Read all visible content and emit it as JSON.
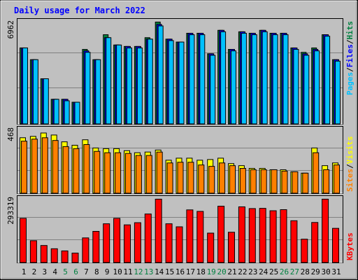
{
  "title": "Daily usage for March 2022",
  "colors": {
    "background": "#c0c0c0",
    "title": "#0000ff",
    "hits": "#008040",
    "files": "#0000ff",
    "pages": "#00c0ff",
    "visits": "#ffff00",
    "sites": "#ff8000",
    "kbytes": "#ff0000",
    "weekend_day": "#008040",
    "weekday": "#000000"
  },
  "chart_data": [
    {
      "type": "bar",
      "panel": "hits-files-pages",
      "categories": [
        "1",
        "2",
        "3",
        "4",
        "5",
        "6",
        "7",
        "8",
        "9",
        "10",
        "11",
        "12",
        "13",
        "14",
        "15",
        "16",
        "17",
        "18",
        "19",
        "20",
        "21",
        "22",
        "23",
        "24",
        "25",
        "26",
        "27",
        "28",
        "29",
        "30",
        "31"
      ],
      "weekend_days": [
        "5",
        "6",
        "12",
        "13",
        "19",
        "20",
        "26",
        "27"
      ],
      "ymax_label": "6962",
      "ylim": [
        0,
        6962
      ],
      "right_labels": [
        "Pages",
        "/",
        "Files",
        "/",
        "Hits"
      ],
      "series": [
        {
          "name": "Hits",
          "values": [
            5200,
            4400,
            3100,
            1700,
            1700,
            1500,
            5100,
            4400,
            6100,
            5400,
            5300,
            5300,
            5900,
            6962,
            5800,
            5600,
            6200,
            6200,
            4800,
            6400,
            5100,
            6300,
            6200,
            6400,
            6200,
            6200,
            5200,
            4900,
            5200,
            6100,
            4400
          ]
        },
        {
          "name": "Files",
          "values": [
            5200,
            4400,
            3100,
            1700,
            1700,
            1500,
            5000,
            4400,
            5900,
            5400,
            5300,
            5300,
            5800,
            6800,
            5800,
            5600,
            6200,
            6200,
            4800,
            6400,
            5100,
            6300,
            6200,
            6400,
            6200,
            6200,
            5200,
            4800,
            5100,
            6100,
            4400
          ]
        },
        {
          "name": "Pages",
          "values": [
            5200,
            4400,
            3100,
            1700,
            1600,
            1500,
            4900,
            4400,
            5900,
            5400,
            5200,
            5200,
            5800,
            6700,
            5700,
            5600,
            6100,
            6100,
            4700,
            6300,
            5000,
            6200,
            6100,
            6300,
            6100,
            6100,
            5100,
            4700,
            5000,
            6000,
            4300
          ]
        }
      ]
    },
    {
      "type": "bar",
      "panel": "visits-sites",
      "ymax_label": "468",
      "ylim": [
        0,
        468
      ],
      "right_labels": [
        "Sites",
        "/",
        "Visits"
      ],
      "series": [
        {
          "name": "Visits",
          "values": [
            410,
            420,
            445,
            430,
            380,
            355,
            395,
            335,
            330,
            330,
            315,
            300,
            305,
            320,
            245,
            260,
            260,
            245,
            250,
            260,
            220,
            205,
            185,
            185,
            175,
            175,
            160,
            150,
            335,
            205,
            225
          ]
        },
        {
          "name": "Sites",
          "values": [
            385,
            400,
            410,
            390,
            345,
            330,
            360,
            310,
            300,
            300,
            295,
            280,
            280,
            305,
            225,
            230,
            230,
            210,
            200,
            225,
            205,
            185,
            175,
            175,
            175,
            165,
            160,
            150,
            300,
            175,
            210
          ]
        }
      ]
    },
    {
      "type": "bar",
      "panel": "kbytes",
      "ymax_label": "293319",
      "ylim": [
        0,
        293319
      ],
      "right_labels": [
        "KBytes"
      ],
      "series": [
        {
          "name": "KBytes",
          "values": [
            205000,
            102000,
            80000,
            65000,
            55000,
            45000,
            115000,
            145000,
            180000,
            205000,
            175000,
            185000,
            225000,
            293319,
            180000,
            166000,
            244000,
            237000,
            137000,
            261000,
            141000,
            258000,
            250000,
            251000,
            240000,
            245000,
            194000,
            109000,
            186000,
            293319,
            159000
          ]
        }
      ]
    }
  ]
}
